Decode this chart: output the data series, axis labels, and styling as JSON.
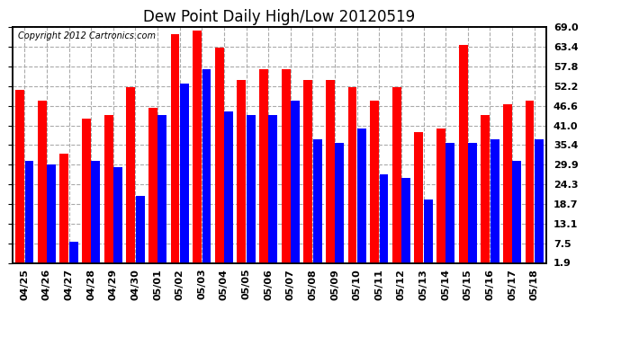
{
  "title": "Dew Point Daily High/Low 20120519",
  "copyright": "Copyright 2012 Cartronics.com",
  "categories": [
    "04/25",
    "04/26",
    "04/27",
    "04/28",
    "04/29",
    "04/30",
    "05/01",
    "05/02",
    "05/03",
    "05/04",
    "05/05",
    "05/06",
    "05/07",
    "05/08",
    "05/09",
    "05/10",
    "05/11",
    "05/12",
    "05/13",
    "05/14",
    "05/15",
    "05/16",
    "05/17",
    "05/18"
  ],
  "high_values": [
    51.0,
    48.0,
    33.0,
    43.0,
    44.0,
    52.0,
    46.0,
    67.0,
    68.0,
    63.0,
    54.0,
    57.0,
    57.0,
    54.0,
    54.0,
    52.0,
    48.0,
    52.0,
    39.0,
    40.0,
    64.0,
    44.0,
    47.0,
    48.0
  ],
  "low_values": [
    31.0,
    30.0,
    8.0,
    31.0,
    29.0,
    21.0,
    44.0,
    53.0,
    57.0,
    45.0,
    44.0,
    44.0,
    48.0,
    37.0,
    36.0,
    40.0,
    27.0,
    26.0,
    20.0,
    36.0,
    36.0,
    37.0,
    31.0,
    37.0
  ],
  "high_color": "#ff0000",
  "low_color": "#0000ff",
  "background_color": "#ffffff",
  "plot_bg_color": "#ffffff",
  "ytick_labels": [
    "69.0",
    "63.4",
    "57.8",
    "52.2",
    "46.6",
    "41.0",
    "35.4",
    "29.9",
    "24.3",
    "18.7",
    "13.1",
    "7.5",
    "1.9"
  ],
  "ytick_values": [
    69.0,
    63.4,
    57.8,
    52.2,
    46.6,
    41.0,
    35.4,
    29.9,
    24.3,
    18.7,
    13.1,
    7.5,
    1.9
  ],
  "ymin": 1.9,
  "ymax": 69.0,
  "title_fontsize": 12,
  "copyright_fontsize": 7,
  "tick_fontsize": 8
}
